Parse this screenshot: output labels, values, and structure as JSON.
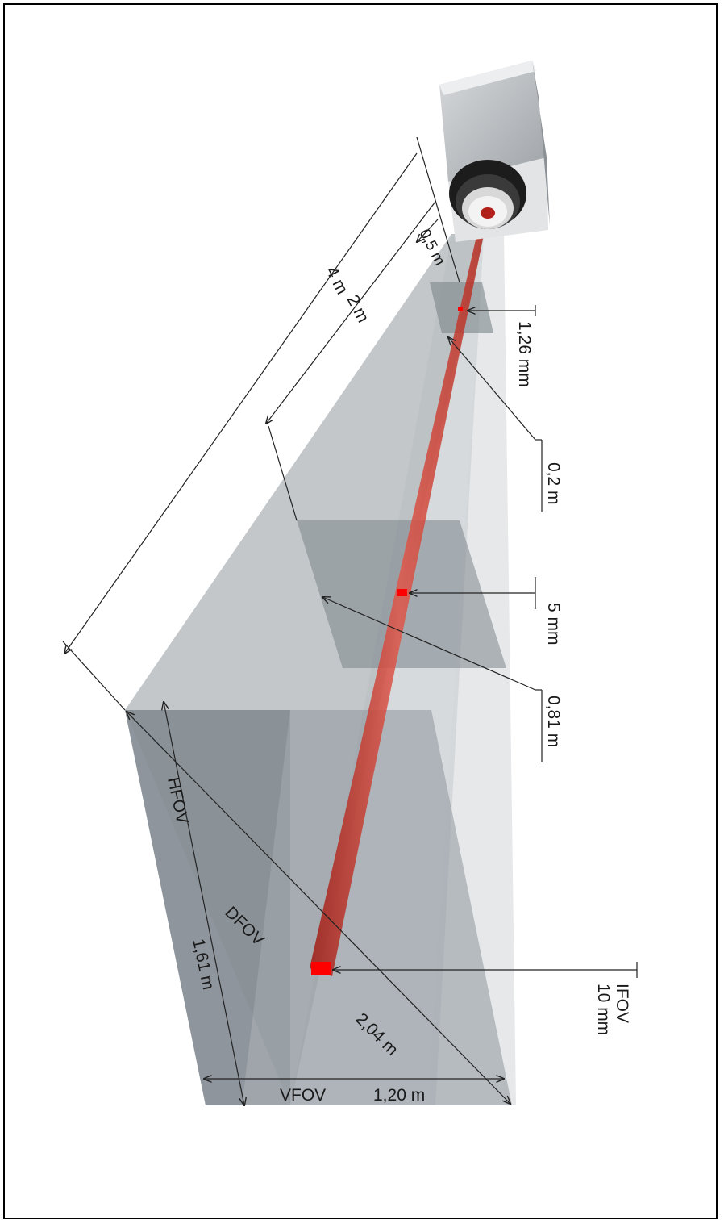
{
  "labels": {
    "dist_4m": "4 m",
    "dist_2m": "2 m",
    "dist_05m": "0,5 m",
    "spot_126mm": "1,26 mm",
    "width_02m": "0,2 m",
    "spot_5mm": "5 mm",
    "width_081m": "0,81 m",
    "ifov_title": "IFOV",
    "ifov_value": "10 mm",
    "hfov": "HFOV",
    "dfov": "DFOV",
    "hfov_value": "1,61 m",
    "dfov_value": "2,04 m",
    "vfov": "VFOV",
    "vfov_value": "1,20 m"
  },
  "colors": {
    "beam": "#c0281c",
    "spot": "#ff0000",
    "plane_dark": "#8e969c",
    "plane_light": "#c9ced2",
    "frustum": "#b4babf"
  }
}
